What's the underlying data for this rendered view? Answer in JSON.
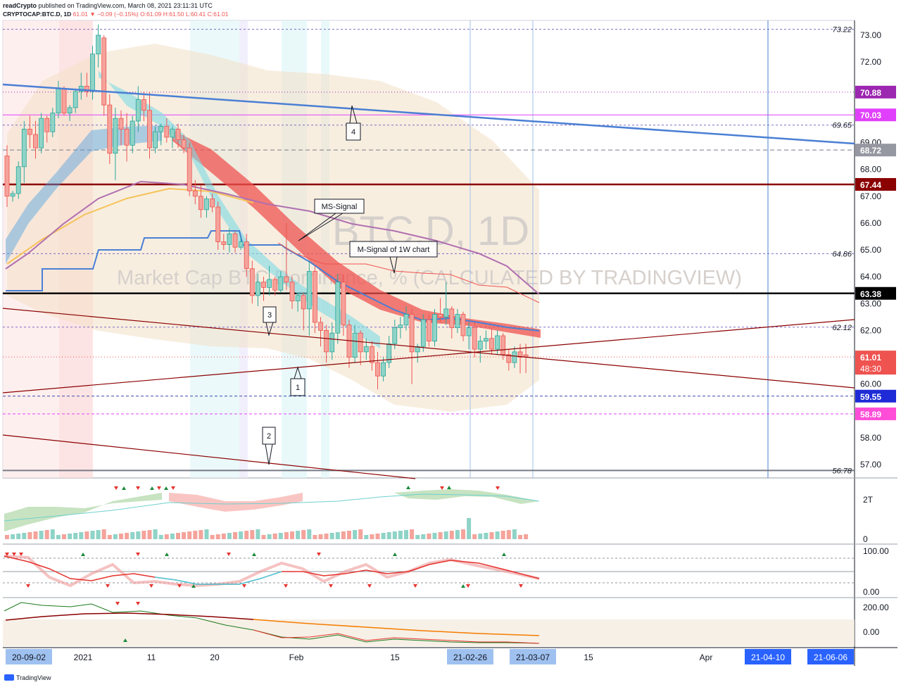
{
  "header": {
    "publisher": "readCrypto",
    "published_text": "published on TradingView.com, March 08, 2021 23:11:31 UTC",
    "symbol": "CRYPTOCAP:BTC.D, 1D",
    "last": "61.01",
    "change": "−0.09 (−0.15%)",
    "open": "O:61.09",
    "high": "H:61.50",
    "low": "L:60.41",
    "close": "C:61.01"
  },
  "watermark": {
    "main": "BTC.D, 1D",
    "sub": "Market Cap BTC Dominance, % (CALCULATED BY TRADINGVIEW)"
  },
  "footer": {
    "brand": "TradingView"
  },
  "colors": {
    "up": "#26a69a",
    "down": "#ef5350",
    "trend_blue": "#4a7fd4",
    "dark_red": "#8b0000",
    "purple_line": "#9c27b0",
    "magenta": "#e040fb"
  },
  "chart_data": {
    "type": "candlestick",
    "ylim": [
      56.5,
      73.5
    ],
    "y_ticks": [
      "73.00",
      "72.00",
      "71.00",
      "70.00",
      "69.00",
      "68.00",
      "67.00",
      "66.00",
      "65.00",
      "64.00",
      "63.00",
      "62.00",
      "61.00",
      "60.00",
      "59.00",
      "58.00",
      "57.00"
    ],
    "x_labels": [
      {
        "text": "20-09-02",
        "highlight": true
      },
      {
        "text": "2021",
        "highlight": false
      },
      {
        "text": "11",
        "highlight": false
      },
      {
        "text": "20",
        "highlight": false
      },
      {
        "text": "Feb",
        "highlight": false
      },
      {
        "text": "15",
        "highlight": false
      },
      {
        "text": "21-02-26",
        "highlight": true
      },
      {
        "text": "21-03-07",
        "highlight": true
      },
      {
        "text": "15",
        "highlight": false
      },
      {
        "text": "Apr",
        "highlight": false
      },
      {
        "text": "21-04-10",
        "highlight": true
      },
      {
        "text": "21-06-06",
        "highlight": true
      }
    ],
    "price_levels": [
      {
        "value": 73.22,
        "label": "73.22",
        "style": "plain"
      },
      {
        "value": 70.88,
        "label": "70.88",
        "style": "purple"
      },
      {
        "value": 70.03,
        "label": "70.03",
        "style": "magenta"
      },
      {
        "value": 69.65,
        "label": "69.65",
        "style": "plain"
      },
      {
        "value": 68.72,
        "label": "68.72",
        "style": "gray"
      },
      {
        "value": 67.44,
        "label": "67.44",
        "style": "darkred"
      },
      {
        "value": 64.86,
        "label": "64.86",
        "style": "plain"
      },
      {
        "value": 63.38,
        "label": "63.38",
        "style": "black"
      },
      {
        "value": 62.12,
        "label": "62.12",
        "style": "plain"
      },
      {
        "value": 61.01,
        "label": "61.01",
        "style": "red"
      },
      {
        "value": 59.55,
        "label": "59.55",
        "style": "blue"
      },
      {
        "value": 58.89,
        "label": "58.89",
        "style": "pink"
      },
      {
        "value": 56.78,
        "label": "56.78",
        "style": "plain"
      }
    ],
    "countdown": "48:30",
    "annotations": [
      {
        "text": "MS-Signal"
      },
      {
        "text": "M-Signal of 1W chart"
      },
      {
        "text": "1"
      },
      {
        "text": "2"
      },
      {
        "text": "3"
      },
      {
        "text": "4"
      }
    ],
    "candles": [
      [
        68.5,
        68.9,
        66.6,
        67.0
      ],
      [
        67.0,
        67.2,
        66.8,
        67.1
      ],
      [
        67.1,
        68.3,
        66.9,
        68.1
      ],
      [
        68.1,
        69.8,
        67.5,
        69.5
      ],
      [
        69.5,
        70.0,
        68.8,
        69.3
      ],
      [
        69.3,
        69.8,
        68.4,
        68.8
      ],
      [
        68.8,
        70.1,
        68.6,
        69.9
      ],
      [
        69.9,
        70.0,
        69.0,
        69.4
      ],
      [
        69.4,
        70.3,
        69.2,
        70.1
      ],
      [
        70.1,
        71.3,
        69.9,
        71.0
      ],
      [
        71.0,
        71.1,
        70.0,
        70.1
      ],
      [
        70.1,
        70.4,
        69.8,
        70.3
      ],
      [
        70.3,
        71.0,
        70.1,
        70.9
      ],
      [
        70.9,
        71.6,
        70.6,
        71.1
      ],
      [
        71.1,
        71.6,
        70.7,
        70.9
      ],
      [
        70.9,
        72.6,
        70.6,
        72.3
      ],
      [
        72.3,
        73.4,
        71.8,
        73.0
      ],
      [
        72.9,
        73.0,
        70.0,
        70.4
      ],
      [
        70.4,
        70.8,
        68.2,
        68.6
      ],
      [
        68.6,
        70.3,
        67.6,
        69.9
      ],
      [
        69.9,
        70.2,
        68.9,
        69.5
      ],
      [
        69.5,
        70.1,
        68.3,
        68.9
      ],
      [
        68.9,
        70.0,
        68.6,
        69.8
      ],
      [
        69.8,
        71.1,
        69.4,
        70.6
      ],
      [
        70.6,
        70.9,
        69.8,
        70.2
      ],
      [
        70.2,
        70.9,
        68.4,
        68.8
      ],
      [
        68.8,
        69.6,
        68.6,
        69.4
      ],
      [
        69.4,
        69.7,
        68.9,
        69.6
      ],
      [
        69.6,
        69.9,
        69.0,
        69.2
      ],
      [
        69.2,
        69.6,
        68.8,
        69.5
      ],
      [
        69.5,
        69.7,
        68.8,
        69.1
      ],
      [
        69.1,
        69.3,
        68.6,
        68.8
      ],
      [
        68.8,
        69.0,
        67.0,
        67.2
      ],
      [
        67.2,
        67.6,
        66.7,
        67.0
      ],
      [
        67.0,
        67.4,
        66.2,
        66.5
      ],
      [
        66.5,
        67.0,
        66.2,
        66.9
      ],
      [
        66.9,
        67.1,
        66.4,
        66.6
      ],
      [
        66.6,
        66.8,
        65.0,
        65.3
      ],
      [
        65.3,
        65.6,
        65.0,
        65.2
      ],
      [
        65.2,
        65.8,
        64.9,
        65.6
      ],
      [
        65.6,
        65.7,
        64.9,
        65.1
      ],
      [
        65.1,
        65.5,
        65.0,
        65.3
      ],
      [
        65.3,
        65.6,
        64.0,
        64.3
      ],
      [
        64.3,
        64.6,
        63.0,
        63.3
      ],
      [
        63.3,
        64.1,
        62.9,
        63.8
      ],
      [
        63.8,
        64.0,
        63.1,
        63.6
      ],
      [
        63.6,
        64.4,
        63.3,
        63.9
      ],
      [
        63.9,
        64.0,
        63.3,
        63.5
      ],
      [
        63.5,
        64.2,
        63.4,
        64.0
      ],
      [
        64.0,
        66.0,
        63.5,
        63.8
      ],
      [
        63.8,
        64.0,
        62.8,
        63.1
      ],
      [
        63.1,
        63.4,
        62.7,
        63.3
      ],
      [
        63.3,
        63.4,
        62.0,
        62.8
      ],
      [
        62.8,
        64.6,
        61.8,
        64.2
      ],
      [
        64.2,
        64.4,
        61.9,
        62.3
      ],
      [
        62.3,
        62.5,
        61.4,
        62.0
      ],
      [
        62.0,
        62.2,
        60.8,
        61.2
      ],
      [
        61.2,
        62.3,
        60.9,
        61.9
      ],
      [
        61.9,
        64.1,
        61.5,
        63.8
      ],
      [
        63.8,
        64.1,
        61.8,
        62.2
      ],
      [
        62.2,
        62.4,
        60.6,
        61.0
      ],
      [
        61.0,
        62.2,
        60.8,
        61.9
      ],
      [
        61.9,
        62.0,
        60.7,
        61.2
      ],
      [
        61.2,
        61.7,
        60.9,
        61.4
      ],
      [
        61.4,
        61.6,
        60.5,
        60.8
      ],
      [
        60.8,
        61.2,
        59.8,
        60.3
      ],
      [
        60.3,
        61.0,
        60.1,
        60.8
      ],
      [
        60.8,
        61.8,
        60.6,
        61.5
      ],
      [
        61.5,
        62.4,
        61.3,
        62.1
      ],
      [
        62.1,
        62.5,
        61.7,
        62.2
      ],
      [
        62.2,
        62.9,
        62.0,
        62.6
      ],
      [
        62.6,
        62.8,
        60.0,
        61.2
      ],
      [
        61.2,
        61.5,
        60.8,
        61.4
      ],
      [
        61.4,
        62.6,
        61.2,
        62.4
      ],
      [
        62.4,
        62.6,
        61.4,
        61.6
      ],
      [
        61.6,
        62.8,
        61.4,
        62.6
      ],
      [
        62.6,
        63.2,
        62.3,
        62.5
      ],
      [
        62.5,
        63.8,
        62.2,
        62.8
      ],
      [
        62.8,
        62.9,
        61.7,
        62.1
      ],
      [
        62.1,
        62.8,
        61.9,
        62.6
      ],
      [
        62.6,
        62.7,
        61.6,
        61.8
      ],
      [
        61.8,
        62.3,
        61.3,
        62.1
      ],
      [
        62.1,
        62.3,
        61.0,
        61.3
      ],
      [
        61.3,
        61.8,
        60.8,
        61.6
      ],
      [
        61.6,
        62.0,
        61.3,
        61.7
      ],
      [
        61.7,
        62.1,
        61.1,
        61.3
      ],
      [
        61.3,
        62.0,
        61.1,
        61.8
      ],
      [
        61.8,
        61.9,
        60.9,
        61.1
      ],
      [
        61.1,
        61.3,
        60.5,
        60.8
      ],
      [
        60.8,
        61.4,
        60.6,
        61.2
      ],
      [
        61.2,
        61.5,
        60.4,
        61.0
      ],
      [
        61.09,
        61.5,
        60.41,
        61.01
      ]
    ],
    "bottom_panels": [
      {
        "right_labels": [
          "2T",
          "0"
        ]
      },
      {
        "right_labels": [
          "100.00",
          "0.00"
        ]
      },
      {
        "right_labels": [
          "200.00",
          "0.00"
        ]
      }
    ]
  }
}
